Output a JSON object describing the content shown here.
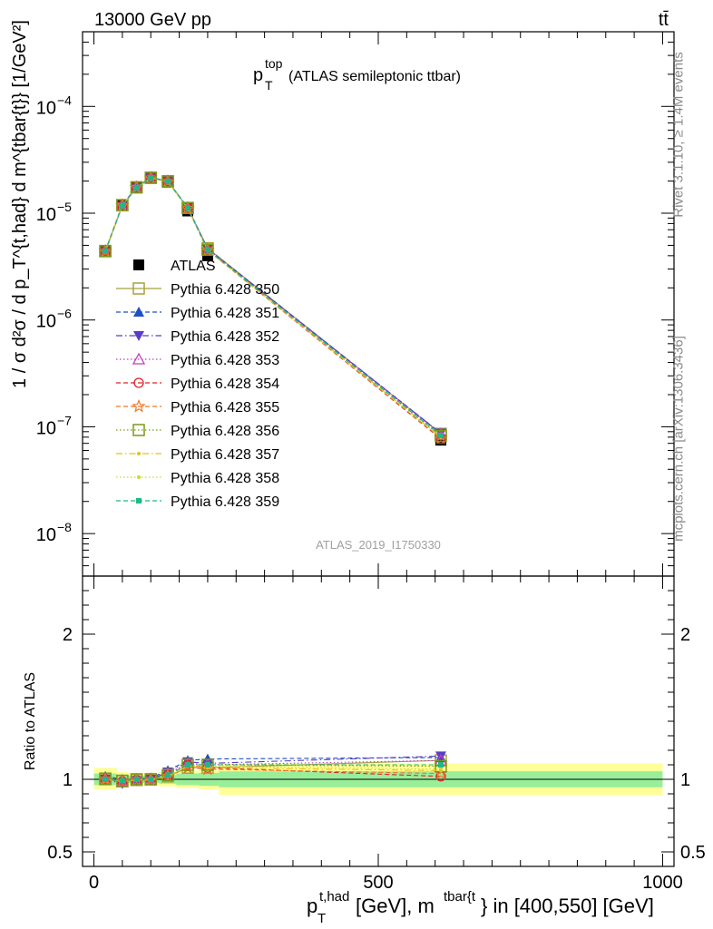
{
  "header": {
    "left": "13000 GeV pp",
    "right": "tt̄"
  },
  "side": {
    "rivet": "Rivet 3.1.10, ≥ 1.4M events",
    "mcplots": "mcplots.cern.ch [arXiv:1306.3436]"
  },
  "chart_data": [
    {
      "type": "line",
      "panel": "main",
      "title_main": "p",
      "title_sup": "top",
      "title_sub": "T",
      "title_rest": " (ATLAS semileptonic ttbar)",
      "watermark": "ATLAS_2019_I1750330",
      "ylabel": "1 / σ d²σ / d p_T^{t,had} d m^{tbar{t}} [1/GeV²]",
      "yscale": "log",
      "ylim": [
        4e-09,
        0.0005
      ],
      "xlim": [
        -20,
        1020
      ],
      "x": [
        20,
        50,
        75,
        100,
        130,
        165,
        200,
        610
      ],
      "series": [
        {
          "name": "ATLAS",
          "color": "#000000",
          "marker": "square-filled",
          "values": [
            4.4e-06,
            1.2e-05,
            1.75e-05,
            2.15e-05,
            1.95e-05,
            1.05e-05,
            4e-06,
            7.5e-08
          ]
        },
        {
          "name": "Pythia 6.428 350",
          "color": "#a8a03c",
          "marker": "square-open",
          "line": "solid",
          "values": [
            4.4e-06,
            1.19e-05,
            1.74e-05,
            2.14e-05,
            1.98e-05,
            1.12e-05,
            4.7e-06,
            8.6e-08
          ]
        },
        {
          "name": "Pythia 6.428 351",
          "color": "#1f4fc2",
          "marker": "triangle-up-filled",
          "line": "dashed",
          "values": [
            4.45e-06,
            1.2e-05,
            1.76e-05,
            2.16e-05,
            2e-05,
            1.13e-05,
            4.65e-06,
            8.7e-08
          ]
        },
        {
          "name": "Pythia 6.428 352",
          "color": "#5a3cc8",
          "marker": "triangle-down-filled",
          "line": "dashdot",
          "values": [
            4.4e-06,
            1.17e-05,
            1.73e-05,
            2.15e-05,
            2e-05,
            1.13e-05,
            4.6e-06,
            8.7e-08
          ]
        },
        {
          "name": "Pythia 6.428 353",
          "color": "#c040b8",
          "marker": "triangle-up-open",
          "line": "dotted",
          "values": [
            4.42e-06,
            1.18e-05,
            1.74e-05,
            2.15e-05,
            1.99e-05,
            1.12e-05,
            4.6e-06,
            8.5e-08
          ]
        },
        {
          "name": "Pythia 6.428 354",
          "color": "#e0202a",
          "marker": "circle-open",
          "line": "dashed",
          "values": [
            4.4e-06,
            1.18e-05,
            1.74e-05,
            2.14e-05,
            1.98e-05,
            1.12e-05,
            4.5e-06,
            7.7e-08
          ]
        },
        {
          "name": "Pythia 6.428 355",
          "color": "#f07828",
          "marker": "star-open",
          "line": "dashed",
          "values": [
            4.4e-06,
            1.18e-05,
            1.74e-05,
            2.14e-05,
            1.98e-05,
            1.11e-05,
            4.5e-06,
            7.8e-08
          ]
        },
        {
          "name": "Pythia 6.428 356",
          "color": "#7a9a18",
          "marker": "square-open",
          "line": "dotted",
          "values": [
            4.43e-06,
            1.19e-05,
            1.75e-05,
            2.15e-05,
            1.99e-05,
            1.12e-05,
            4.55e-06,
            8.2e-08
          ]
        },
        {
          "name": "Pythia 6.428 357",
          "color": "#e8c018",
          "marker": "dot",
          "line": "dashdot",
          "values": [
            4.4e-06,
            1.18e-05,
            1.74e-05,
            2.14e-05,
            1.98e-05,
            1.11e-05,
            4.5e-06,
            8e-08
          ]
        },
        {
          "name": "Pythia 6.428 358",
          "color": "#c8d830",
          "marker": "dot",
          "line": "dotted",
          "values": [
            4.41e-06,
            1.18e-05,
            1.74e-05,
            2.14e-05,
            1.98e-05,
            1.11e-05,
            4.5e-06,
            8e-08
          ]
        },
        {
          "name": "Pythia 6.428 359",
          "color": "#20b888",
          "marker": "square-filled-small",
          "line": "dashed",
          "values": [
            4.4e-06,
            1.18e-05,
            1.74e-05,
            2.15e-05,
            1.99e-05,
            1.12e-05,
            4.55e-06,
            8.3e-08
          ]
        }
      ],
      "yticks": [
        {
          "base": "10",
          "exp": "−8",
          "value": 1e-08
        },
        {
          "base": "10",
          "exp": "−7",
          "value": 1e-07
        },
        {
          "base": "10",
          "exp": "−6",
          "value": 1e-06
        },
        {
          "base": "10",
          "exp": "−5",
          "value": 1e-05
        },
        {
          "base": "10",
          "exp": "−4",
          "value": 0.0001
        }
      ]
    },
    {
      "type": "line",
      "panel": "ratio",
      "ylabel": "Ratio to ATLAS",
      "ylim": [
        0.4,
        2.4
      ],
      "xlim": [
        -20,
        1020
      ],
      "x": [
        20,
        50,
        75,
        100,
        130,
        165,
        200,
        610
      ],
      "yticks": [
        {
          "label": "0.5",
          "value": 0.5
        },
        {
          "label": "1",
          "value": 1
        },
        {
          "label": "2",
          "value": 2
        }
      ],
      "xticks": [
        {
          "label": "0",
          "value": 0
        },
        {
          "label": "500",
          "value": 500
        },
        {
          "label": "1000",
          "value": 1000
        }
      ],
      "xlabel_parts": [
        "p",
        "T",
        "t,had",
        " [GeV], m",
        "tbar{t",
        "} in [400,550] [GeV]"
      ],
      "bands": [
        {
          "x0": 0,
          "x1": 40,
          "inner": [
            0.96,
            1.04
          ],
          "outer": [
            0.93,
            1.08
          ]
        },
        {
          "x0": 40,
          "x1": 60,
          "inner": [
            0.97,
            1.03
          ],
          "outer": [
            0.95,
            1.05
          ]
        },
        {
          "x0": 60,
          "x1": 90,
          "inner": [
            0.975,
            1.025
          ],
          "outer": [
            0.955,
            1.045
          ]
        },
        {
          "x0": 90,
          "x1": 115,
          "inner": [
            0.975,
            1.025
          ],
          "outer": [
            0.955,
            1.045
          ]
        },
        {
          "x0": 115,
          "x1": 145,
          "inner": [
            0.97,
            1.03
          ],
          "outer": [
            0.95,
            1.05
          ]
        },
        {
          "x0": 145,
          "x1": 185,
          "inner": [
            0.96,
            1.04
          ],
          "outer": [
            0.94,
            1.06
          ]
        },
        {
          "x0": 185,
          "x1": 220,
          "inner": [
            0.955,
            1.045
          ],
          "outer": [
            0.93,
            1.07
          ]
        },
        {
          "x0": 220,
          "x1": 1000,
          "inner": [
            0.945,
            1.055
          ],
          "outer": [
            0.89,
            1.11
          ]
        }
      ],
      "series": [
        {
          "name": "Pythia 6.428 350",
          "values": [
            1.0,
            0.99,
            0.995,
            1.0,
            1.02,
            1.08,
            1.08,
            1.13
          ]
        },
        {
          "name": "Pythia 6.428 351",
          "values": [
            1.02,
            1.0,
            1.0,
            1.01,
            1.06,
            1.13,
            1.14,
            1.15
          ]
        },
        {
          "name": "Pythia 6.428 352",
          "values": [
            1.0,
            0.97,
            0.99,
            1.0,
            1.05,
            1.12,
            1.11,
            1.16
          ]
        },
        {
          "name": "Pythia 6.428 353",
          "values": [
            1.0,
            0.98,
            0.995,
            1.0,
            1.04,
            1.11,
            1.1,
            1.13
          ]
        },
        {
          "name": "Pythia 6.428 354",
          "values": [
            1.0,
            0.985,
            0.995,
            1.0,
            1.03,
            1.1,
            1.08,
            1.02
          ]
        },
        {
          "name": "Pythia 6.428 355",
          "values": [
            1.0,
            0.985,
            0.995,
            0.995,
            1.02,
            1.08,
            1.07,
            1.04
          ]
        },
        {
          "name": "Pythia 6.428 356",
          "values": [
            1.005,
            0.99,
            1.0,
            1.0,
            1.03,
            1.1,
            1.1,
            1.09
          ]
        },
        {
          "name": "Pythia 6.428 357",
          "values": [
            1.0,
            0.985,
            0.995,
            0.995,
            1.02,
            1.09,
            1.08,
            1.06
          ]
        },
        {
          "name": "Pythia 6.428 358",
          "values": [
            1.0,
            0.985,
            0.995,
            1.0,
            1.03,
            1.09,
            1.09,
            1.07
          ]
        },
        {
          "name": "Pythia 6.428 359",
          "values": [
            1.0,
            0.99,
            1.0,
            1.0,
            1.03,
            1.1,
            1.1,
            1.1
          ]
        }
      ]
    }
  ]
}
